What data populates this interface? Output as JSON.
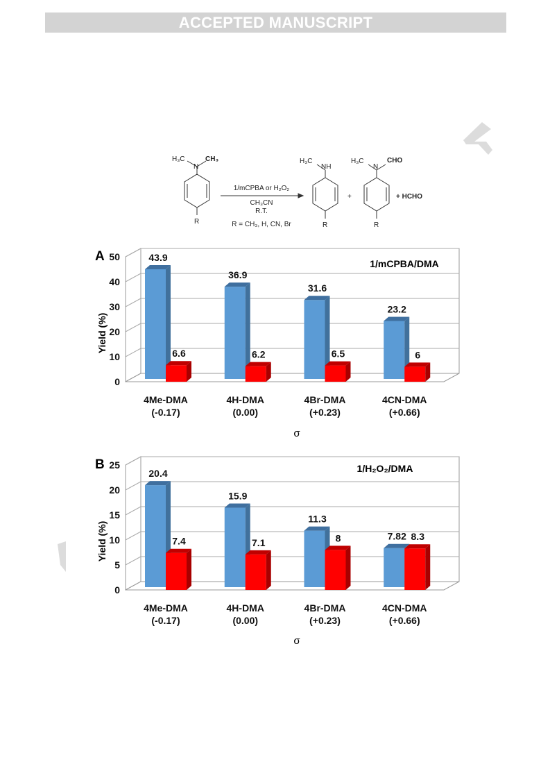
{
  "banner": {
    "text": "ACCEPTED MANUSCRIPT"
  },
  "scheme": {
    "reactant_n_left": "H₃C",
    "reactant_n_right": "CH₃",
    "reactant_n": "N",
    "reactant_r": "R",
    "arrow_reagent": "1/mCPBA or H₂O₂",
    "solvent": "CH₃CN",
    "temperature": "R.T.",
    "r_groups": "R = CH₃, H, CN, Br",
    "product1_methyl": "H₃C",
    "product1_nh": "NH",
    "product1_r": "R",
    "plus1": "+",
    "product2_methyl": "H₃C",
    "product2_n": "N",
    "product2_cho": "CHO",
    "product2_r": "R",
    "byproduct": "+ HCHO"
  },
  "chart_data": [
    {
      "type": "bar",
      "panel_label": "A",
      "title": "1/mCPBA/DMA",
      "ylabel": "Yield (%)",
      "xlabel": "σ",
      "ylim": [
        0,
        50
      ],
      "yticks": [
        "0",
        "10",
        "20",
        "30",
        "40",
        "50"
      ],
      "categories": [
        "4Me-DMA",
        "4H-DMA",
        "4Br-DMA",
        "4CN-DMA"
      ],
      "category_sublabels": [
        "(-0.17)",
        "(0.00)",
        "(+0.23)",
        "(+0.66)"
      ],
      "grid": true,
      "series": [
        {
          "values": [
            43.9,
            36.9,
            31.6,
            23.2
          ],
          "labels": [
            "43.9",
            "36.9",
            "31.6",
            "23.2"
          ],
          "color": "#5b9bd5",
          "side_color": "#41719c",
          "top_color": "#3f6f9f"
        },
        {
          "values": [
            6.6,
            6.2,
            6.5,
            6
          ],
          "labels": [
            "6.6",
            "6.2",
            "6.5",
            "6"
          ],
          "color": "#ff0000",
          "side_color": "#a80000",
          "top_color": "#c00000"
        }
      ]
    },
    {
      "type": "bar",
      "panel_label": "B",
      "title": "1/H₂O₂/DMA",
      "ylabel": "Yield (%)",
      "xlabel": "σ",
      "ylim": [
        0,
        25
      ],
      "yticks": [
        "0",
        "5",
        "10",
        "15",
        "20",
        "25"
      ],
      "categories": [
        "4Me-DMA",
        "4H-DMA",
        "4Br-DMA",
        "4CN-DMA"
      ],
      "category_sublabels": [
        "(-0.17)",
        "(0.00)",
        "(+0.23)",
        "(+0.66)"
      ],
      "grid": true,
      "series": [
        {
          "values": [
            20.4,
            15.9,
            11.3,
            7.82
          ],
          "labels": [
            "20.4",
            "15.9",
            "11.3",
            "7.82"
          ],
          "color": "#5b9bd5",
          "side_color": "#41719c",
          "top_color": "#3f6f9f"
        },
        {
          "values": [
            7.4,
            7.1,
            8,
            8.3
          ],
          "labels": [
            "7.4",
            "7.1",
            "8",
            "8.3"
          ],
          "color": "#ff0000",
          "side_color": "#a80000",
          "top_color": "#c00000"
        }
      ]
    }
  ]
}
